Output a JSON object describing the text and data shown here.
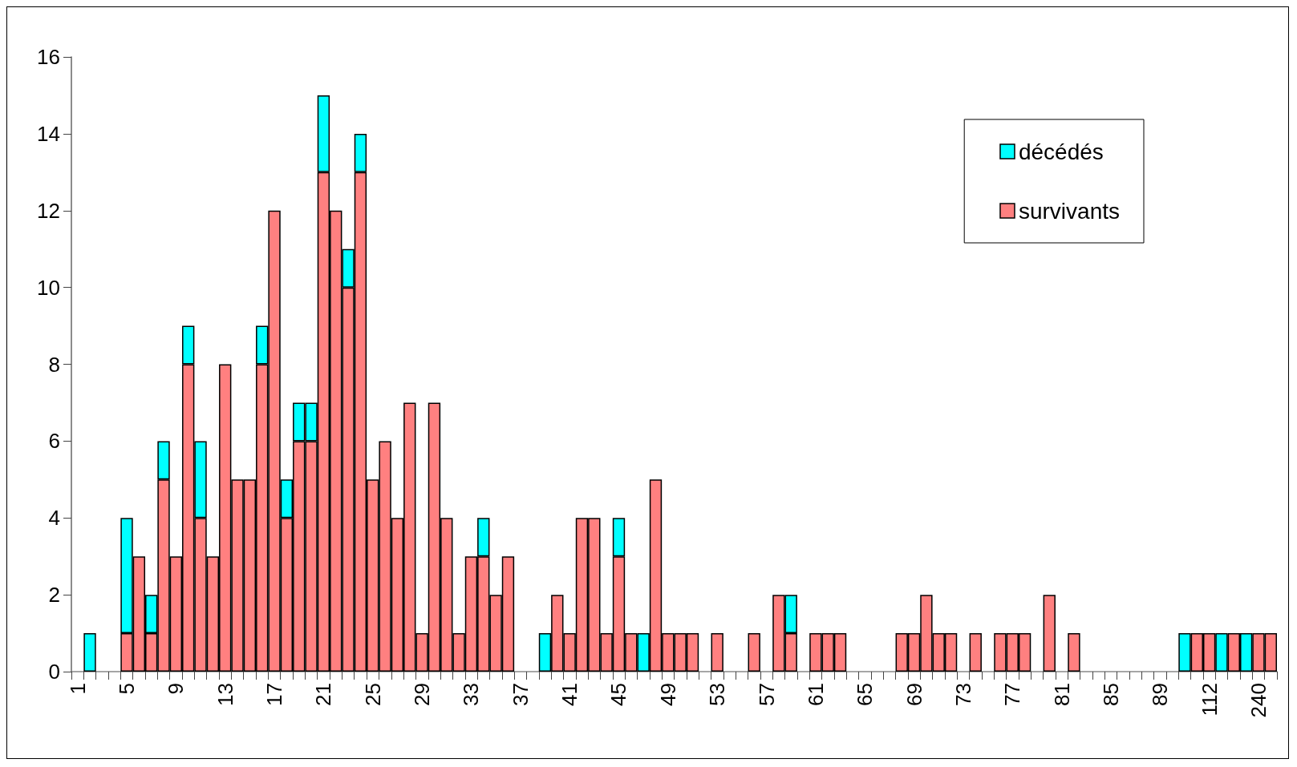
{
  "chart_data": {
    "type": "bar",
    "stacked": true,
    "categories": [
      "1",
      null,
      null,
      null,
      "5",
      null,
      null,
      null,
      "9",
      null,
      null,
      null,
      "13",
      null,
      null,
      null,
      "17",
      null,
      null,
      null,
      "21",
      null,
      null,
      null,
      "25",
      null,
      null,
      null,
      "29",
      null,
      null,
      null,
      "33",
      null,
      null,
      null,
      "37",
      null,
      null,
      null,
      "41",
      null,
      null,
      null,
      "45",
      null,
      null,
      null,
      "49",
      null,
      null,
      null,
      "53",
      null,
      null,
      null,
      "57",
      null,
      null,
      null,
      "61",
      null,
      null,
      null,
      "65",
      null,
      null,
      null,
      "69",
      null,
      null,
      null,
      "73",
      null,
      null,
      null,
      "77",
      null,
      null,
      null,
      "81",
      null,
      null,
      null,
      "85",
      null,
      null,
      null,
      "89",
      null,
      null,
      null,
      "112",
      null,
      null,
      null,
      "240",
      null
    ],
    "series": [
      {
        "name": "survivants",
        "color": "#ff8080",
        "values": [
          0,
          0,
          0,
          0,
          1,
          3,
          1,
          5,
          3,
          8,
          4,
          3,
          8,
          5,
          5,
          8,
          12,
          4,
          6,
          6,
          13,
          12,
          10,
          13,
          5,
          6,
          4,
          7,
          1,
          7,
          4,
          1,
          3,
          3,
          2,
          3,
          0,
          0,
          0,
          2,
          1,
          4,
          4,
          1,
          3,
          1,
          0,
          5,
          1,
          1,
          1,
          0,
          1,
          0,
          0,
          1,
          0,
          2,
          1,
          0,
          1,
          1,
          1,
          0,
          0,
          0,
          0,
          1,
          1,
          2,
          1,
          1,
          0,
          1,
          0,
          1,
          1,
          1,
          0,
          2,
          0,
          1,
          0,
          0,
          0,
          0,
          0,
          0,
          0,
          0,
          0,
          1,
          1,
          0,
          1,
          0,
          1,
          1
        ]
      },
      {
        "name": "décédés",
        "color": "#00ffff",
        "values": [
          0,
          1,
          0,
          0,
          3,
          0,
          1,
          1,
          0,
          1,
          2,
          0,
          0,
          0,
          0,
          1,
          0,
          1,
          1,
          1,
          2,
          0,
          1,
          1,
          0,
          0,
          0,
          0,
          0,
          0,
          0,
          0,
          0,
          1,
          0,
          0,
          0,
          0,
          1,
          0,
          0,
          0,
          0,
          0,
          1,
          0,
          1,
          0,
          0,
          0,
          0,
          0,
          0,
          0,
          0,
          0,
          0,
          0,
          1,
          0,
          0,
          0,
          0,
          0,
          0,
          0,
          0,
          0,
          0,
          0,
          0,
          0,
          0,
          0,
          0,
          0,
          0,
          0,
          0,
          0,
          0,
          0,
          0,
          0,
          0,
          0,
          0,
          0,
          0,
          0,
          1,
          0,
          0,
          1,
          0,
          1,
          0,
          0
        ]
      }
    ],
    "ylim": [
      0,
      16
    ],
    "yticks": [
      0,
      2,
      4,
      6,
      8,
      10,
      12,
      14,
      16
    ],
    "grid": false,
    "legend": "top right"
  }
}
